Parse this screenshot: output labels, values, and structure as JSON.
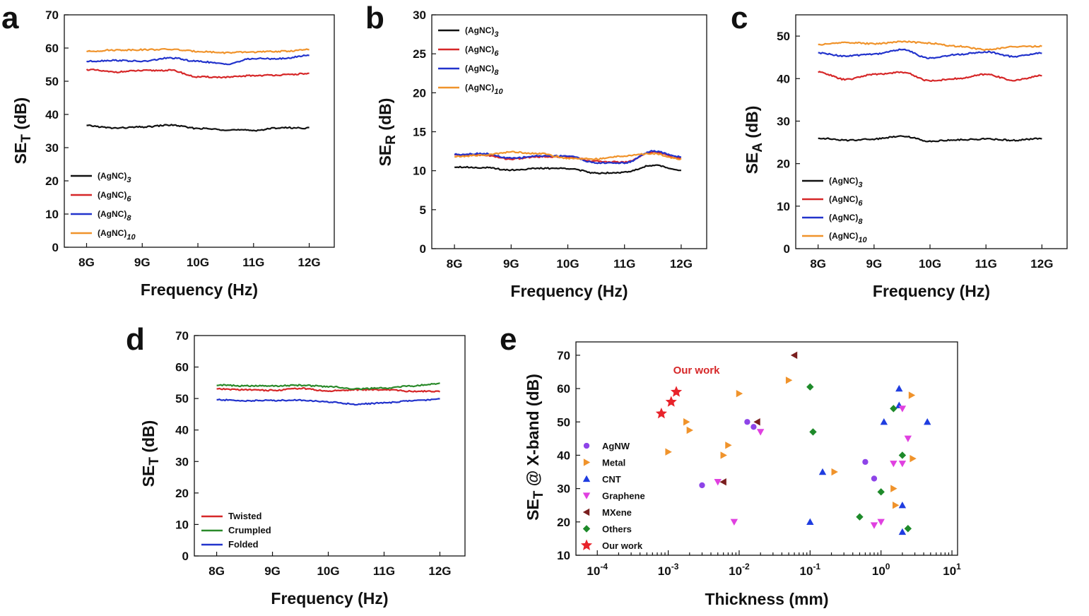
{
  "figure": {
    "panels": [
      {
        "key": "a",
        "letter": "a"
      },
      {
        "key": "b",
        "letter": "b"
      },
      {
        "key": "c",
        "letter": "c"
      },
      {
        "key": "d",
        "letter": "d"
      },
      {
        "key": "e",
        "letter": "e"
      }
    ]
  },
  "chart_data": [
    {
      "panel": "a",
      "type": "line",
      "title": "",
      "xlabel": "Frequency (Hz)",
      "ylabel": {
        "main": "SE",
        "sub": "T",
        "unit": " (dB)"
      },
      "x": [
        8,
        8.5,
        9,
        9.5,
        10,
        10.5,
        11,
        11.5,
        12
      ],
      "xtick_labels": [
        "8G",
        "9G",
        "10G",
        "11G",
        "12G"
      ],
      "xticks": [
        8,
        9,
        10,
        11,
        12
      ],
      "xlim": [
        7.6,
        12.45
      ],
      "yticks": [
        0,
        10,
        20,
        30,
        40,
        50,
        60,
        70
      ],
      "ylim": [
        0,
        70
      ],
      "legend_position": "bottom-left",
      "series": [
        {
          "name": "(AgNC)",
          "sub": "3",
          "color": "#111111",
          "values": [
            36.6,
            35.9,
            36.2,
            36.8,
            35.8,
            35.4,
            35.2,
            36.0,
            35.9
          ]
        },
        {
          "name": "(AgNC)",
          "sub": "6",
          "color": "#d62728",
          "values": [
            53.5,
            52.8,
            53.2,
            53.3,
            51.3,
            51.2,
            51.7,
            51.9,
            52.3
          ]
        },
        {
          "name": "(AgNC)",
          "sub": "8",
          "color": "#2233cc",
          "values": [
            56.0,
            56.3,
            56.0,
            57.0,
            56.0,
            55.2,
            56.8,
            56.8,
            57.8
          ]
        },
        {
          "name": "(AgNC)",
          "sub": "10",
          "color": "#f0932b",
          "values": [
            59.0,
            59.4,
            59.5,
            59.6,
            59.0,
            58.6,
            58.8,
            59.0,
            59.5
          ]
        }
      ]
    },
    {
      "panel": "b",
      "type": "line",
      "title": "",
      "xlabel": "Frequency (Hz)",
      "ylabel": {
        "main": "SE",
        "sub": "R",
        "unit": " (dB)"
      },
      "x": [
        8,
        8.5,
        9,
        9.5,
        10,
        10.5,
        11,
        11.5,
        12
      ],
      "xtick_labels": [
        "8G",
        "9G",
        "10G",
        "11G",
        "12G"
      ],
      "xticks": [
        8,
        9,
        10,
        11,
        12
      ],
      "xlim": [
        7.6,
        12.45
      ],
      "yticks": [
        0,
        5,
        10,
        15,
        20,
        25,
        30
      ],
      "ylim": [
        0,
        30
      ],
      "legend_position": "top-left",
      "series": [
        {
          "name": "(AgNC)",
          "sub": "3",
          "color": "#111111",
          "values": [
            10.5,
            10.4,
            10.1,
            10.3,
            10.3,
            9.7,
            9.8,
            10.7,
            10.1
          ]
        },
        {
          "name": "(AgNC)",
          "sub": "6",
          "color": "#d62728",
          "values": [
            12.0,
            12.0,
            11.5,
            11.8,
            11.8,
            11.2,
            11.1,
            12.4,
            11.6
          ]
        },
        {
          "name": "(AgNC)",
          "sub": "8",
          "color": "#2233cc",
          "values": [
            12.1,
            12.2,
            11.6,
            11.9,
            11.9,
            11.0,
            11.0,
            12.5,
            11.8
          ]
        },
        {
          "name": "(AgNC)",
          "sub": "10",
          "color": "#f0932b",
          "values": [
            11.8,
            12.0,
            12.4,
            12.2,
            11.6,
            11.5,
            11.9,
            12.2,
            11.5
          ]
        }
      ]
    },
    {
      "panel": "c",
      "type": "line",
      "title": "",
      "xlabel": "Frequency (Hz)",
      "ylabel": {
        "main": "SE",
        "sub": "A",
        "unit": " (dB)"
      },
      "x": [
        8,
        8.5,
        9,
        9.5,
        10,
        10.5,
        11,
        11.5,
        12
      ],
      "xtick_labels": [
        "8G",
        "9G",
        "10G",
        "11G",
        "12G"
      ],
      "xticks": [
        8,
        9,
        10,
        11,
        12
      ],
      "xlim": [
        7.6,
        12.45
      ],
      "yticks": [
        0,
        10,
        20,
        30,
        40,
        50
      ],
      "ylim": [
        0,
        55
      ],
      "legend_position": "bottom-left",
      "series": [
        {
          "name": "(AgNC)",
          "sub": "3",
          "color": "#111111",
          "values": [
            26.0,
            25.5,
            25.8,
            26.5,
            25.3,
            25.6,
            25.8,
            25.5,
            25.9
          ]
        },
        {
          "name": "(AgNC)",
          "sub": "6",
          "color": "#d62728",
          "values": [
            41.5,
            39.8,
            41.0,
            41.5,
            39.5,
            40.0,
            41.0,
            39.6,
            40.7
          ]
        },
        {
          "name": "(AgNC)",
          "sub": "8",
          "color": "#2233cc",
          "values": [
            46.0,
            45.3,
            45.8,
            46.8,
            44.8,
            45.7,
            46.3,
            45.2,
            46.0
          ]
        },
        {
          "name": "(AgNC)",
          "sub": "10",
          "color": "#f0932b",
          "values": [
            48.0,
            48.5,
            48.2,
            48.7,
            48.3,
            47.6,
            46.8,
            47.5,
            47.6
          ]
        }
      ]
    },
    {
      "panel": "d",
      "type": "line",
      "title": "",
      "xlabel": "Frequency (Hz)",
      "ylabel": {
        "main": "SE",
        "sub": "T",
        "unit": " (dB)"
      },
      "x": [
        8,
        8.5,
        9,
        9.5,
        10,
        10.5,
        11,
        11.5,
        12
      ],
      "xtick_labels": [
        "8G",
        "9G",
        "10G",
        "11G",
        "12G"
      ],
      "xticks": [
        8,
        9,
        10,
        11,
        12
      ],
      "xlim": [
        7.6,
        12.45
      ],
      "yticks": [
        0,
        10,
        20,
        30,
        40,
        50,
        60,
        70
      ],
      "ylim": [
        0,
        70
      ],
      "legend_position": "bottom-left",
      "series": [
        {
          "name": "Twisted",
          "sub": "",
          "color": "#d62728",
          "values": [
            53.0,
            52.8,
            52.6,
            53.2,
            52.4,
            52.8,
            52.8,
            52.3,
            52.3
          ]
        },
        {
          "name": "Crumpled",
          "sub": "",
          "color": "#2a8a2a",
          "values": [
            54.3,
            54.0,
            54.0,
            54.2,
            53.8,
            53.1,
            53.3,
            54.0,
            54.8
          ]
        },
        {
          "name": "Folded",
          "sub": "",
          "color": "#2233cc",
          "values": [
            49.6,
            49.3,
            49.4,
            49.5,
            48.9,
            48.2,
            48.6,
            49.3,
            49.8
          ]
        }
      ]
    },
    {
      "panel": "e",
      "type": "scatter",
      "title": "",
      "xlabel": "Thickness (mm)",
      "ylabel": {
        "main": "SE",
        "sub": "T",
        "unit": " @ X-band (dB)"
      },
      "xscale": "log",
      "xlim": [
        5e-05,
        12
      ],
      "xticks": [
        0.0001,
        0.001,
        0.01,
        0.1,
        1,
        10
      ],
      "xtick_labels": [
        {
          "base": "10",
          "exp": "-4"
        },
        {
          "base": "10",
          "exp": "-3"
        },
        {
          "base": "10",
          "exp": "-2"
        },
        {
          "base": "10",
          "exp": "-1"
        },
        {
          "base": "10",
          "exp": "0"
        },
        {
          "base": "10",
          "exp": "1"
        }
      ],
      "yticks": [
        10,
        20,
        30,
        40,
        50,
        60,
        70
      ],
      "ylim": [
        10,
        74
      ],
      "legend_position": "left",
      "annotation": {
        "text": "Our work",
        "x": 0.0025,
        "y": 65.5,
        "color": "#d62728"
      },
      "series": [
        {
          "name": "AgNW",
          "marker": "circle",
          "color": "#8e44e8",
          "points": [
            [
              0.003,
              31
            ],
            [
              0.013,
              50
            ],
            [
              0.016,
              48.5
            ],
            [
              0.6,
              38
            ],
            [
              0.8,
              33
            ]
          ]
        },
        {
          "name": "Metal",
          "marker": "triangle-right",
          "color": "#f0932b",
          "points": [
            [
              0.001,
              41
            ],
            [
              0.0018,
              50
            ],
            [
              0.002,
              47.5
            ],
            [
              0.006,
              40
            ],
            [
              0.007,
              43
            ],
            [
              0.01,
              58.5
            ],
            [
              0.05,
              62.5
            ],
            [
              0.22,
              35
            ],
            [
              1.5,
              30
            ],
            [
              1.6,
              25
            ],
            [
              2.7,
              58
            ],
            [
              2.8,
              39
            ]
          ]
        },
        {
          "name": "CNT",
          "marker": "triangle-up",
          "color": "#1f3de0",
          "points": [
            [
              0.1,
              20
            ],
            [
              0.15,
              35
            ],
            [
              1.1,
              50
            ],
            [
              1.8,
              55
            ],
            [
              1.8,
              60
            ],
            [
              2.0,
              25
            ],
            [
              2.0,
              17
            ],
            [
              4.5,
              50
            ]
          ]
        },
        {
          "name": "Graphene",
          "marker": "triangle-down",
          "color": "#e040e0",
          "points": [
            [
              0.005,
              32
            ],
            [
              0.0085,
              20
            ],
            [
              0.02,
              47
            ],
            [
              0.8,
              19
            ],
            [
              1.0,
              20
            ],
            [
              1.5,
              37.5
            ],
            [
              2.0,
              54
            ],
            [
              2.0,
              37.5
            ],
            [
              2.4,
              45
            ]
          ]
        },
        {
          "name": "MXene",
          "marker": "triangle-left",
          "color": "#7a1e1e",
          "points": [
            [
              0.006,
              32
            ],
            [
              0.018,
              50
            ],
            [
              0.06,
              70
            ]
          ]
        },
        {
          "name": "Others",
          "marker": "diamond",
          "color": "#1e8a2a",
          "points": [
            [
              0.1,
              60.5
            ],
            [
              0.11,
              47
            ],
            [
              0.5,
              21.5
            ],
            [
              1.0,
              29
            ],
            [
              1.5,
              54
            ],
            [
              2.0,
              40
            ],
            [
              2.4,
              18
            ]
          ]
        },
        {
          "name": "Our work",
          "marker": "star",
          "color": "#e8232b",
          "points": [
            [
              0.0008,
              52.5
            ],
            [
              0.0011,
              56
            ],
            [
              0.0013,
              59
            ]
          ]
        }
      ]
    }
  ]
}
